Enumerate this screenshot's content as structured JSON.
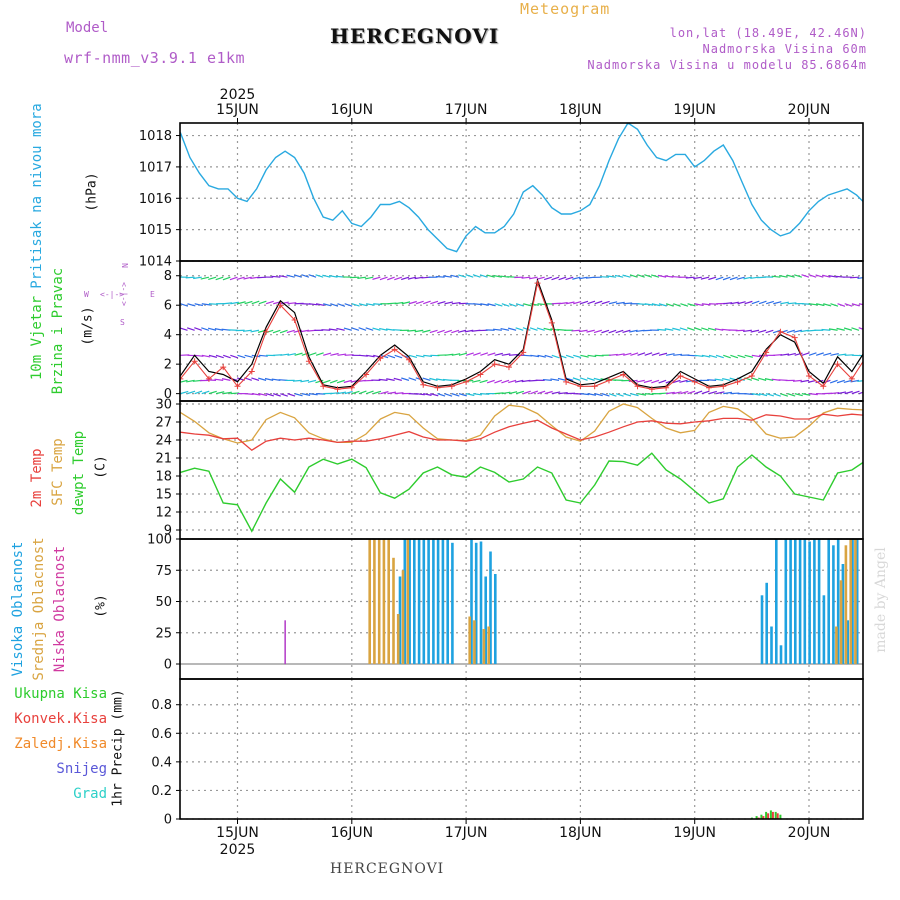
{
  "header": {
    "model_label": "Model",
    "model_name": "wrf-nmm_v3.9.1 e1km",
    "product": "Meteogram",
    "station": "HERCEGNOVI",
    "lonlat": "lon,lat (18.49E, 42.46N)",
    "elevation": "Nadmorska Visina 60m",
    "model_elevation": "Nadmorska Visina u modelu 85.6864m"
  },
  "footer": {
    "station": "HERCEGNOVI",
    "credit": "made by Angel"
  },
  "axis": {
    "year": "2025",
    "days": [
      "15JUN",
      "16JUN",
      "17JUN",
      "18JUN",
      "19JUN",
      "20JUN"
    ]
  },
  "panels": {
    "pressure": {
      "title": "Pritisak na nivou mora",
      "unit": "(hPa)"
    },
    "wind": {
      "title1": "10m Vjetar",
      "title2": "Brzina i Pravac",
      "unit": "(m/s)",
      "compass_n": "N",
      "compass_s": "S",
      "compass_w": "W",
      "compass_e": "E",
      "compass_ns": "<-|->",
      "compass_we": "<-|->"
    },
    "temperature": {
      "title1": "2m Temp",
      "title2": "SFC Temp",
      "title3": "dewpt Temp",
      "unit": "(C)"
    },
    "cloud": {
      "title1": "Visoka Oblacnost",
      "title2": "Srednja Oblacnost",
      "title3": "Niska Oblacnost",
      "unit": "(%)"
    },
    "precip": {
      "labels": [
        "Ukupna Kisa",
        "Konvek.Kisa",
        "Zaledj.Kisa",
        "Snijeg",
        "Grad"
      ],
      "unit": "1hr Precip (mm)"
    }
  },
  "colors": {
    "pressure": "#29a9e0",
    "temp2m": "#e8413d",
    "sfc": "#d9a441",
    "dewpt": "#2ecc2e",
    "high_cloud": "#1fa2e0",
    "mid_cloud": "#d9a441",
    "low_cloud": "#b23ac7",
    "total_precip": "#2ecc2e",
    "conv_precip": "#e8413d",
    "frz_precip": "#f08a2a",
    "snow": "#5a58d8",
    "hail": "#2dd0c8",
    "wind_speed": "#000000",
    "wind_gust": "#e8413d",
    "model_label": "#b05cc8",
    "product_label": "#e8b04a",
    "info_label": "#b05cc8"
  },
  "chart_data": [
    {
      "type": "line",
      "title": "Pritisak na nivou mora",
      "ylabel": "(hPa)",
      "ylim": [
        1014,
        1018.4
      ],
      "yticks": [
        1014,
        1015,
        1016,
        1017,
        1018
      ],
      "x_unit": "hours from 15JUN 00 UTC",
      "series": [
        {
          "x": [
            -12,
            -10,
            -8,
            -6,
            -4,
            -2,
            0,
            2,
            4,
            6,
            8,
            10,
            12,
            14,
            16,
            18,
            20,
            22,
            24,
            26,
            28,
            30,
            32,
            34,
            36,
            38,
            40,
            42,
            44,
            46,
            48,
            50,
            52,
            54,
            56,
            58,
            60,
            62,
            64,
            66,
            68,
            70,
            72,
            74,
            76,
            78,
            80,
            82,
            84,
            86,
            88,
            90,
            92,
            94,
            96,
            98,
            100,
            102,
            104,
            106,
            108,
            110,
            112,
            114,
            116,
            118,
            120,
            122,
            124,
            126,
            128,
            130,
            132
          ],
          "y": [
            1018.1,
            1017.3,
            1016.8,
            1016.4,
            1016.3,
            1016.3,
            1016.0,
            1015.9,
            1016.3,
            1016.9,
            1017.3,
            1017.5,
            1017.3,
            1016.8,
            1016.0,
            1015.4,
            1015.3,
            1015.6,
            1015.2,
            1015.1,
            1015.4,
            1015.8,
            1015.8,
            1015.9,
            1015.7,
            1015.4,
            1015.0,
            1014.7,
            1014.4,
            1014.3,
            1014.8,
            1015.1,
            1014.9,
            1014.9,
            1015.1,
            1015.5,
            1016.2,
            1016.4,
            1016.1,
            1015.7,
            1015.5,
            1015.5,
            1015.6,
            1015.8,
            1016.4,
            1017.2,
            1017.9,
            1018.4,
            1018.2,
            1017.7,
            1017.3,
            1017.2,
            1017.4,
            1017.4,
            1017.0,
            1017.2,
            1017.5,
            1017.7,
            1017.2,
            1016.5,
            1015.8,
            1015.3,
            1015.0,
            1014.8,
            1014.9,
            1015.2,
            1015.6,
            1015.9,
            1016.1,
            1016.2,
            1016.3,
            1016.1,
            1015.8
          ]
        }
      ]
    },
    {
      "type": "line",
      "title": "10m Vjetar Brzina i Pravac",
      "ylabel": "(m/s)",
      "ylim": [
        -0.5,
        9
      ],
      "yticks": [
        0,
        2,
        4,
        6,
        8
      ],
      "x_unit": "hours from 15JUN 00 UTC",
      "series": [
        {
          "name": "wind speed",
          "x": [
            -12,
            -9,
            -6,
            -3,
            0,
            3,
            6,
            9,
            12,
            15,
            18,
            21,
            24,
            27,
            30,
            33,
            36,
            39,
            42,
            45,
            48,
            51,
            54,
            57,
            60,
            63,
            66,
            69,
            72,
            75,
            78,
            81,
            84,
            87,
            90,
            93,
            96,
            99,
            102,
            105,
            108,
            111,
            114,
            117,
            120,
            123,
            126,
            129,
            132
          ],
          "y": [
            1.2,
            2.6,
            1.5,
            1.3,
            0.8,
            2.0,
            4.5,
            6.3,
            5.5,
            2.5,
            0.6,
            0.4,
            0.5,
            1.5,
            2.6,
            3.3,
            2.5,
            0.8,
            0.5,
            0.6,
            1.0,
            1.5,
            2.3,
            2.0,
            3.0,
            7.7,
            5.0,
            1.0,
            0.6,
            0.7,
            1.1,
            1.5,
            0.6,
            0.4,
            0.5,
            1.5,
            1.0,
            0.5,
            0.6,
            1.0,
            1.5,
            3.0,
            4.0,
            3.5,
            1.5,
            0.7,
            2.5,
            1.5,
            3.0
          ]
        },
        {
          "name": "wind gust",
          "x": [
            -12,
            -9,
            -6,
            -3,
            0,
            3,
            6,
            9,
            12,
            15,
            18,
            21,
            24,
            27,
            30,
            33,
            36,
            39,
            42,
            45,
            48,
            51,
            54,
            57,
            60,
            63,
            66,
            69,
            72,
            75,
            78,
            81,
            84,
            87,
            90,
            93,
            96,
            99,
            102,
            105,
            108,
            111,
            114,
            117,
            120,
            123,
            126,
            129,
            132
          ],
          "y": [
            1.0,
            2.2,
            1.0,
            1.8,
            0.5,
            1.5,
            4.2,
            6.0,
            5.0,
            2.2,
            0.5,
            0.3,
            0.4,
            1.3,
            2.4,
            3.0,
            2.3,
            0.6,
            0.4,
            0.5,
            0.8,
            1.3,
            2.0,
            1.8,
            2.8,
            7.5,
            4.8,
            0.8,
            0.5,
            0.5,
            0.9,
            1.3,
            0.5,
            0.3,
            0.4,
            1.2,
            0.8,
            0.4,
            0.5,
            0.8,
            1.2,
            2.8,
            4.2,
            3.8,
            1.2,
            0.5,
            2.0,
            1.0,
            2.5
          ]
        }
      ]
    },
    {
      "type": "line",
      "title": "2m Temp, SFC Temp, dewpt Temp",
      "ylabel": "(C)",
      "ylim": [
        7.5,
        30.5
      ],
      "yticks": [
        9,
        12,
        15,
        18,
        21,
        24,
        27,
        30
      ],
      "x_unit": "hours from 15JUN 00 UTC",
      "series": [
        {
          "name": "2m Temp",
          "x": [
            -12,
            -9,
            -6,
            -3,
            0,
            3,
            6,
            9,
            12,
            15,
            18,
            21,
            24,
            27,
            30,
            33,
            36,
            39,
            42,
            45,
            48,
            51,
            54,
            57,
            60,
            63,
            66,
            69,
            72,
            75,
            78,
            81,
            84,
            87,
            90,
            93,
            96,
            99,
            102,
            105,
            108,
            111,
            114,
            117,
            120,
            123,
            126,
            129,
            132
          ],
          "y": [
            25.3,
            25.0,
            24.8,
            24.2,
            24.3,
            22.3,
            23.8,
            24.3,
            24.0,
            24.3,
            24.0,
            23.6,
            23.8,
            23.8,
            24.2,
            24.8,
            25.4,
            24.5,
            24.0,
            24.0,
            23.8,
            24.2,
            25.3,
            26.2,
            26.8,
            27.3,
            26.0,
            25.0,
            24.0,
            24.5,
            25.3,
            26.2,
            27.0,
            27.2,
            26.8,
            26.7,
            27.0,
            27.2,
            27.6,
            27.6,
            27.3,
            28.2,
            28.0,
            27.5,
            27.5,
            28.3,
            28.0,
            28.3,
            28.1
          ]
        },
        {
          "name": "SFC Temp",
          "x": [
            -12,
            -9,
            -6,
            -3,
            0,
            3,
            6,
            9,
            12,
            15,
            18,
            21,
            24,
            27,
            30,
            33,
            36,
            39,
            42,
            45,
            48,
            51,
            54,
            57,
            60,
            63,
            66,
            69,
            72,
            75,
            78,
            81,
            84,
            87,
            90,
            93,
            96,
            99,
            102,
            105,
            108,
            111,
            114,
            117,
            120,
            123,
            126,
            129,
            132
          ],
          "y": [
            28.6,
            27.1,
            25.2,
            24.2,
            23.5,
            24.0,
            27.4,
            28.6,
            27.7,
            25.2,
            24.2,
            23.6,
            23.6,
            25.0,
            27.5,
            28.6,
            28.2,
            26.0,
            24.2,
            24.0,
            23.9,
            24.8,
            28.0,
            29.8,
            29.5,
            28.4,
            26.4,
            24.5,
            23.8,
            25.5,
            28.8,
            30.0,
            29.4,
            27.6,
            26.0,
            25.2,
            25.6,
            28.6,
            29.6,
            29.2,
            27.6,
            25.0,
            24.3,
            24.5,
            26.3,
            28.5,
            29.3,
            29.1,
            29.0
          ]
        },
        {
          "name": "dewpt Temp",
          "x": [
            -12,
            -9,
            -6,
            -3,
            0,
            3,
            6,
            9,
            12,
            15,
            18,
            21,
            24,
            27,
            30,
            33,
            36,
            39,
            42,
            45,
            48,
            51,
            54,
            57,
            60,
            63,
            66,
            69,
            72,
            75,
            78,
            81,
            84,
            87,
            90,
            93,
            96,
            99,
            102,
            105,
            108,
            111,
            114,
            117,
            120,
            123,
            126,
            129,
            132
          ],
          "y": [
            18.6,
            19.3,
            18.8,
            13.5,
            13.2,
            8.8,
            13.5,
            17.5,
            15.3,
            19.5,
            20.8,
            20.0,
            20.8,
            19.4,
            15.2,
            14.3,
            15.8,
            18.5,
            19.5,
            18.2,
            17.8,
            19.5,
            18.6,
            17.0,
            17.5,
            19.5,
            18.5,
            14.0,
            13.5,
            16.5,
            20.5,
            20.4,
            19.8,
            21.8,
            19.0,
            17.5,
            15.5,
            13.5,
            14.2,
            19.5,
            21.5,
            19.5,
            18.0,
            15.0,
            14.5,
            14.0,
            18.5,
            19.0,
            20.6
          ]
        }
      ]
    },
    {
      "type": "bar",
      "title": "Visoka / Srednja / Niska Oblacnost",
      "ylabel": "(%)",
      "ylim": [
        -12,
        100
      ],
      "yticks": [
        0,
        25,
        50,
        75,
        100
      ],
      "x_unit": "hours from 15JUN 00 UTC",
      "series": [
        {
          "name": "Visoka Oblacnost",
          "x": [
            34,
            35,
            36,
            37,
            38,
            39,
            40,
            41,
            42,
            43,
            44,
            45,
            49,
            50,
            51,
            52,
            53,
            54,
            110,
            111,
            112,
            113,
            114,
            115,
            116,
            117,
            118,
            119,
            120,
            121,
            122,
            123,
            124,
            125,
            126,
            127,
            128,
            129,
            130
          ],
          "y": [
            70,
            100,
            100,
            100,
            100,
            100,
            100,
            100,
            100,
            100,
            100,
            97,
            100,
            97,
            98,
            70,
            90,
            72,
            55,
            65,
            30,
            100,
            15,
            100,
            100,
            100,
            100,
            100,
            98,
            100,
            100,
            55,
            100,
            95,
            100,
            80,
            35,
            100,
            100
          ]
        },
        {
          "name": "Srednja Oblacnost",
          "x": [
            28,
            29,
            30,
            31,
            32,
            33,
            34,
            35,
            36,
            49,
            50,
            52,
            53,
            126,
            127,
            128,
            129,
            130
          ],
          "y": [
            100,
            100,
            100,
            100,
            100,
            85,
            40,
            75,
            100,
            38,
            35,
            28,
            30,
            30,
            67,
            95,
            100,
            100
          ]
        },
        {
          "name": "Niska Oblacnost",
          "x": [
            10
          ],
          "y": [
            35
          ]
        }
      ]
    },
    {
      "type": "bar",
      "title": "1hr Precip",
      "ylabel": "1hr Precip (mm)",
      "ylim": [
        0,
        0.98
      ],
      "yticks": [
        0,
        0.2,
        0.4,
        0.6,
        0.8
      ],
      "x_unit": "hours from 15JUN 00 UTC",
      "series": [
        {
          "name": "Ukupna Kisa",
          "x": [
            108,
            109,
            110,
            111,
            112,
            113,
            114
          ],
          "y": [
            0.01,
            0.02,
            0.03,
            0.05,
            0.06,
            0.05,
            0.03
          ]
        },
        {
          "name": "Konvek.Kisa",
          "x": [
            109,
            110,
            111,
            112,
            113
          ],
          "y": [
            0.01,
            0.02,
            0.04,
            0.05,
            0.04
          ]
        }
      ]
    }
  ]
}
